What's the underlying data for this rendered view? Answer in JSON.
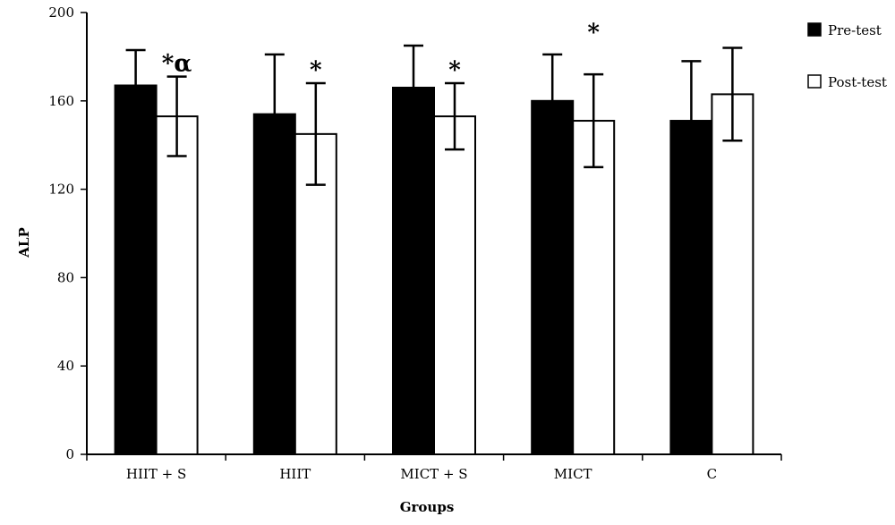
{
  "chart_data": {
    "type": "bar",
    "title": "",
    "xlabel": "Groups",
    "ylabel": "ALP",
    "ylim": [
      0,
      200
    ],
    "yticks": [
      0,
      40,
      80,
      120,
      160,
      200
    ],
    "categories": [
      "HIIT + S",
      "HIIT",
      "MICT + S",
      "MICT",
      "C"
    ],
    "series": [
      {
        "name": "Pre-test",
        "color": "#000000",
        "values": [
          167,
          154,
          166,
          160,
          151
        ],
        "errors": [
          16,
          27,
          19,
          21,
          27
        ]
      },
      {
        "name": "Post-test",
        "color": "#ffffff",
        "values": [
          153,
          145,
          153,
          151,
          163
        ],
        "errors": [
          18,
          23,
          15,
          21,
          21
        ]
      }
    ],
    "annotations": [
      "*α",
      "*",
      "*",
      "*",
      ""
    ],
    "legend": {
      "placement": "top-right"
    },
    "grid": false
  }
}
